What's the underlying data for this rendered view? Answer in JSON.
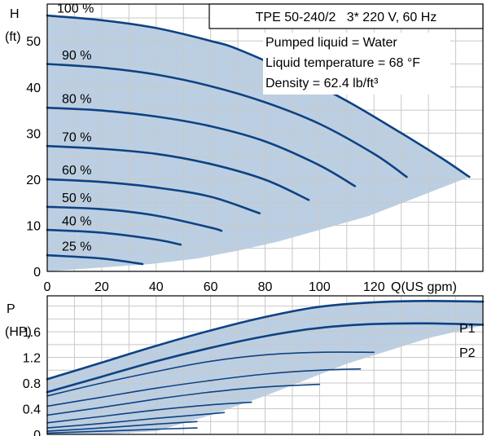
{
  "chart_data": [
    {
      "type": "line",
      "title": "TPE 50-240/2   3* 220 V, 60 Hz",
      "info": [
        "Pumped liquid = Water",
        "Liquid temperature = 68 °F",
        "Density = 62.4 lb/ft³"
      ],
      "ylabel": [
        "H",
        "(ft)"
      ],
      "xlabel": "Q(US gpm)",
      "xlim": [
        0,
        160
      ],
      "ylim": [
        0,
        58
      ],
      "xticks": [
        "0",
        "20",
        "40",
        "60",
        "80",
        "100",
        "120"
      ],
      "xtick_values": [
        0,
        20,
        40,
        60,
        80,
        100,
        120
      ],
      "yticks": [
        "0",
        "10",
        "20",
        "30",
        "40",
        "50"
      ],
      "ytick_values": [
        0,
        10,
        20,
        30,
        40,
        50
      ],
      "grid": true,
      "series": [
        {
          "name": "100 %",
          "x": [
            0,
            20,
            40,
            60,
            70,
            90,
            110,
            130,
            145,
            155
          ],
          "y": [
            55.5,
            54.5,
            52.8,
            50.0,
            48.2,
            43.0,
            37.0,
            30.0,
            24.5,
            20.5
          ]
        },
        {
          "name": "90 %",
          "x": [
            0,
            20,
            40,
            60,
            80,
            100,
            120,
            132
          ],
          "y": [
            45.0,
            44.2,
            42.7,
            40.2,
            36.7,
            32.0,
            25.5,
            20.5
          ]
        },
        {
          "name": "80 %",
          "x": [
            0,
            20,
            40,
            60,
            80,
            100,
            113
          ],
          "y": [
            35.5,
            34.9,
            33.6,
            31.5,
            28.2,
            23.0,
            18.5
          ]
        },
        {
          "name": "70 %",
          "x": [
            0,
            20,
            40,
            60,
            80,
            96
          ],
          "y": [
            27.2,
            26.6,
            25.5,
            23.3,
            19.9,
            15.5
          ]
        },
        {
          "name": "60 %",
          "x": [
            0,
            20,
            40,
            60,
            78
          ],
          "y": [
            20.0,
            19.4,
            18.2,
            16.2,
            12.6
          ]
        },
        {
          "name": "50 %",
          "x": [
            0,
            20,
            40,
            60,
            64
          ],
          "y": [
            14.0,
            13.5,
            12.1,
            9.5,
            8.8
          ]
        },
        {
          "name": "40 %",
          "x": [
            0,
            20,
            40,
            49
          ],
          "y": [
            9.0,
            8.4,
            6.9,
            5.8
          ]
        },
        {
          "name": "25 %",
          "x": [
            0,
            20,
            35
          ],
          "y": [
            3.5,
            2.8,
            1.6
          ]
        }
      ],
      "region": {
        "x": [
          0,
          0,
          20,
          40,
          60,
          70,
          90,
          110,
          130,
          145,
          155,
          118,
          100,
          85,
          70,
          55,
          38
        ],
        "y": [
          0,
          55.5,
          54.5,
          52.8,
          50.0,
          48.2,
          43.0,
          37.0,
          30.0,
          24.5,
          20.5,
          12.0,
          9.0,
          6.5,
          4.5,
          2.8,
          1.6
        ]
      }
    },
    {
      "type": "line",
      "ylabel": [
        "P",
        "(HP)"
      ],
      "xlim": [
        0,
        160
      ],
      "ylim": [
        0,
        2.16
      ],
      "yticks": [
        "0",
        "0.4",
        "0.8",
        "1.2",
        "1.6"
      ],
      "ytick_values": [
        0,
        0.4,
        0.8,
        1.2,
        1.6
      ],
      "grid": true,
      "series": [
        {
          "name": "P1",
          "x": [
            0,
            20,
            40,
            60,
            80,
            100,
            120,
            140,
            160
          ],
          "y": [
            0.86,
            1.12,
            1.38,
            1.62,
            1.83,
            1.99,
            2.06,
            2.08,
            2.07
          ]
        },
        {
          "name": "P2",
          "x": [
            0,
            20,
            40,
            60,
            80,
            100,
            120,
            140,
            160
          ],
          "y": [
            0.66,
            0.9,
            1.14,
            1.35,
            1.53,
            1.66,
            1.72,
            1.73,
            1.71
          ]
        },
        {
          "name": "",
          "x": [
            0,
            20,
            40,
            60,
            80,
            100,
            120
          ],
          "y": [
            0.6,
            0.8,
            0.98,
            1.14,
            1.24,
            1.28,
            1.28
          ]
        },
        {
          "name": "",
          "x": [
            0,
            20,
            40,
            60,
            80,
            100,
            115
          ],
          "y": [
            0.44,
            0.58,
            0.72,
            0.84,
            0.94,
            1.0,
            1.02
          ]
        },
        {
          "name": "",
          "x": [
            0,
            20,
            40,
            60,
            80,
            100
          ],
          "y": [
            0.3,
            0.42,
            0.55,
            0.66,
            0.74,
            0.78
          ]
        },
        {
          "name": "",
          "x": [
            0,
            20,
            40,
            60,
            75
          ],
          "y": [
            0.18,
            0.28,
            0.38,
            0.46,
            0.5
          ]
        },
        {
          "name": "",
          "x": [
            0,
            20,
            40,
            60,
            65
          ],
          "y": [
            0.1,
            0.17,
            0.25,
            0.32,
            0.34
          ]
        },
        {
          "name": "",
          "x": [
            0,
            20,
            40,
            55
          ],
          "y": [
            0.05,
            0.1,
            0.16,
            0.2
          ]
        },
        {
          "name": "",
          "x": [
            0,
            20,
            40,
            55
          ],
          "y": [
            0.02,
            0.05,
            0.08,
            0.1
          ]
        }
      ],
      "region": {
        "x": [
          0,
          20,
          40,
          60,
          80,
          100,
          120,
          140,
          160,
          160,
          140,
          110,
          80,
          60,
          40,
          20,
          0
        ],
        "y": [
          0.86,
          1.12,
          1.38,
          1.62,
          1.83,
          1.99,
          2.06,
          2.08,
          2.07,
          1.7,
          1.5,
          1.1,
          0.6,
          0.3,
          0.05,
          0.0,
          0.0
        ]
      }
    }
  ]
}
